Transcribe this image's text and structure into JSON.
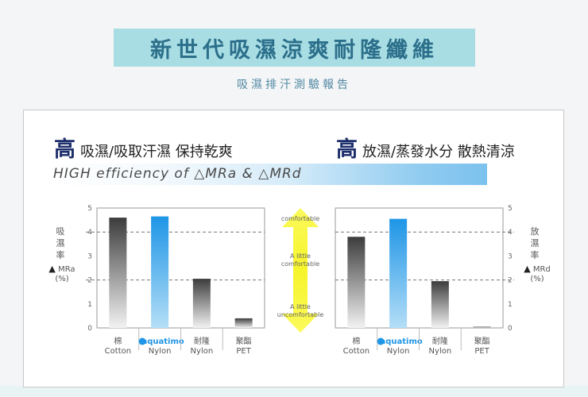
{
  "header": {
    "title": "新世代吸濕涼爽耐隆纖維",
    "subtitle": "吸濕排汗測驗報告"
  },
  "headings": {
    "left_big": "高",
    "left_text": "吸濕/吸取汗濕 保持乾爽",
    "right_big": "高",
    "right_text": "放濕/蒸發水分 散熱清涼",
    "efficiency": "HIGH efficiency of △MRa & △MRd"
  },
  "left_axis": {
    "label_lines": [
      "吸",
      "濕",
      "率"
    ],
    "unit_line1": "MRa",
    "unit_line2": "(%)"
  },
  "right_axis": {
    "label_lines": [
      "放",
      "濕",
      "率"
    ],
    "unit_line1": "MRd",
    "unit_line2": "(%)"
  },
  "comfort_scale": {
    "top": "comfortable",
    "middle_1": "A little",
    "middle_2": "comfortable",
    "bottom_1": "A little",
    "bottom_2": "uncomfortable"
  },
  "brand": "aquatimo",
  "chart_data": [
    {
      "type": "bar",
      "title": "",
      "ylabel": "吸濕率 MRa (%)",
      "ylim": [
        0,
        5
      ],
      "yticks": [
        0,
        1,
        2,
        3,
        4,
        5
      ],
      "reference_lines": [
        2,
        4
      ],
      "categories": [
        {
          "zh": "棉",
          "en": "Cotton"
        },
        {
          "zh": "aquatimo",
          "en": "Nylon"
        },
        {
          "zh": "耐隆",
          "en": "Nylon"
        },
        {
          "zh": "聚酯",
          "en": "PET"
        }
      ],
      "values": [
        4.6,
        4.65,
        2.05,
        0.4
      ],
      "highlight_index": 1
    },
    {
      "type": "bar",
      "title": "",
      "ylabel": "放濕率 MRd (%)",
      "ylim": [
        0,
        5
      ],
      "yticks": [
        0,
        1,
        2,
        3,
        4,
        5
      ],
      "reference_lines": [
        2,
        4
      ],
      "categories": [
        {
          "zh": "棉",
          "en": "Cotton"
        },
        {
          "zh": "aquatimo",
          "en": "Nylon"
        },
        {
          "zh": "耐隆",
          "en": "Nylon"
        },
        {
          "zh": "聚酯",
          "en": "PET"
        }
      ],
      "values": [
        3.8,
        4.55,
        1.95,
        0.05
      ],
      "highlight_index": 1
    }
  ],
  "colors": {
    "banner": "#a8dde3",
    "title": "#2c6f8b",
    "heading_big": "#1d2e6c",
    "highlight_bar_top": "#1e95e6",
    "highlight_bar_bottom": "#b4def7",
    "gray_bar_top": "#3c3c3c",
    "gray_bar_bottom": "#f2f2f2",
    "arrow": "#f6f42a"
  }
}
